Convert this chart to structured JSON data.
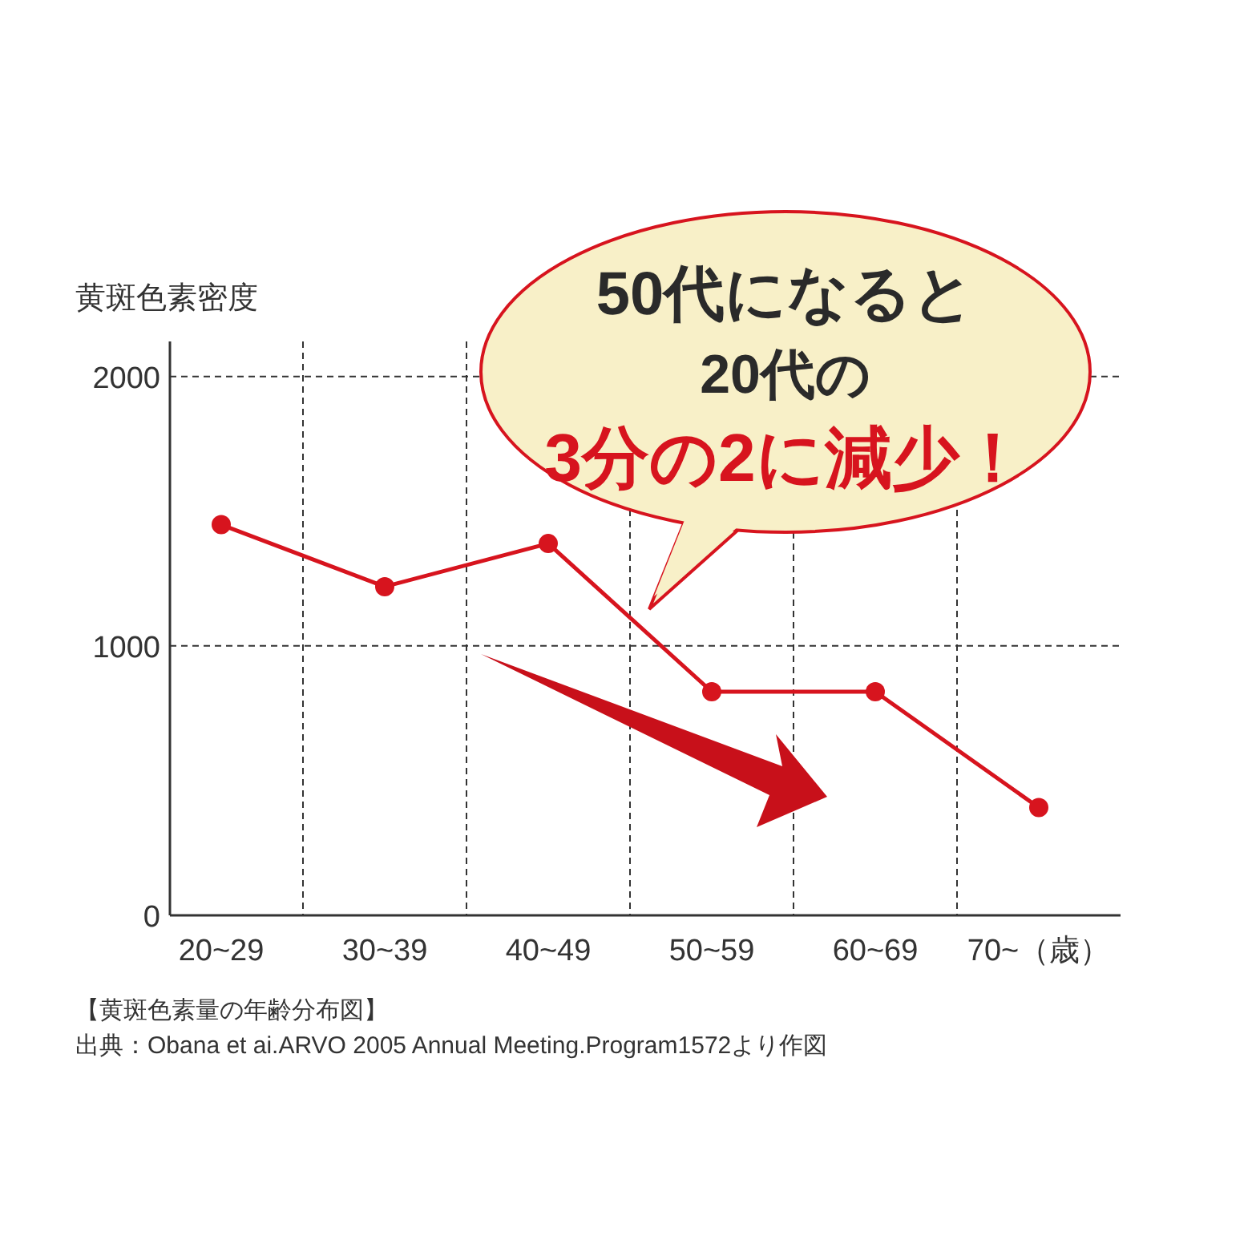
{
  "chart_data": {
    "type": "line",
    "ylabel": "黄斑色素密度",
    "categories": [
      "20~29",
      "30~39",
      "40~49",
      "50~59",
      "60~69",
      "70~（歳）"
    ],
    "series": [
      {
        "color": "#d7141e",
        "values": [
          1450,
          1220,
          1380,
          830,
          830,
          400
        ]
      }
    ],
    "ylim": [
      0,
      2130
    ],
    "yticks": [
      0,
      1000,
      2000
    ],
    "grid": true,
    "marker": "circle",
    "line_style": "solid",
    "annotations": [
      "50代になると",
      "20代の",
      "3分の2に減少！",
      "【黄斑色素量の年齢分布図】",
      "出典：Obana et ai.ARVO 2005 Annual Meeting.Program1572より作図"
    ]
  }
}
